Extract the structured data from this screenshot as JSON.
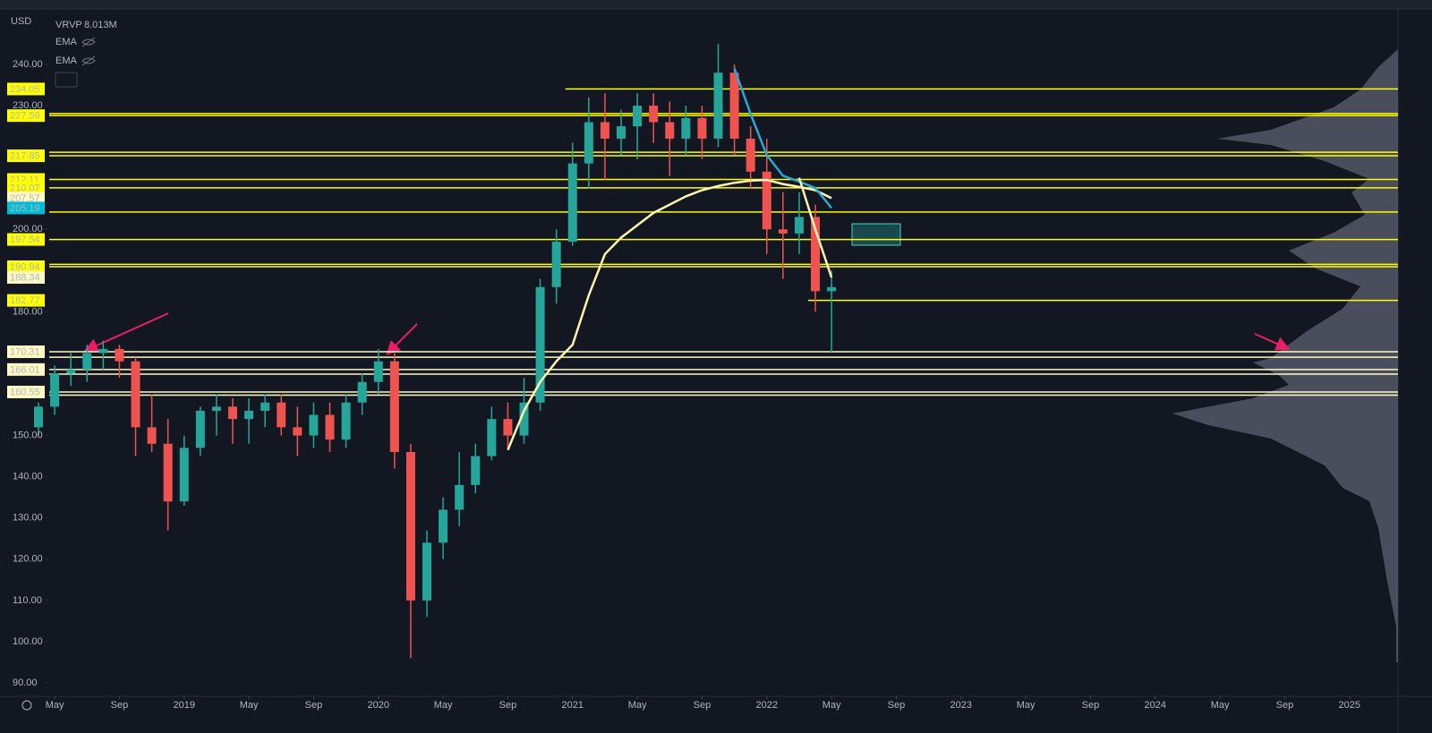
{
  "chart_data": {
    "type": "candlestick",
    "currency": "USD",
    "indicator_label": "VRVP",
    "indicator_value": "8.013M",
    "xlim": [
      "2018-04",
      "2025-04"
    ],
    "ylim": [
      88,
      247
    ],
    "yticks": [
      {
        "value": 90,
        "label": "90.00"
      },
      {
        "value": 100,
        "label": "100.00"
      },
      {
        "value": 110,
        "label": "110.00"
      },
      {
        "value": 120,
        "label": "120.00"
      },
      {
        "value": 130,
        "label": "130.00"
      },
      {
        "value": 140,
        "label": "140.00"
      },
      {
        "value": 150,
        "label": "150.00"
      },
      {
        "value": 180,
        "label": "180.00"
      },
      {
        "value": 200,
        "label": "200.00"
      },
      {
        "value": 230,
        "label": "230.00"
      },
      {
        "value": 240,
        "label": "240.00"
      }
    ],
    "xticks": [
      {
        "value": "2018-05",
        "label": "May"
      },
      {
        "value": "2018-09",
        "label": "Sep"
      },
      {
        "value": "2019-01",
        "label": "2019"
      },
      {
        "value": "2019-05",
        "label": "May"
      },
      {
        "value": "2019-09",
        "label": "Sep"
      },
      {
        "value": "2020-01",
        "label": "2020"
      },
      {
        "value": "2020-05",
        "label": "May"
      },
      {
        "value": "2020-09",
        "label": "Sep"
      },
      {
        "value": "2021-01",
        "label": "2021"
      },
      {
        "value": "2021-05",
        "label": "May"
      },
      {
        "value": "2021-09",
        "label": "Sep"
      },
      {
        "value": "2022-01",
        "label": "2022"
      },
      {
        "value": "2022-05",
        "label": "May"
      },
      {
        "value": "2022-09",
        "label": "Sep"
      },
      {
        "value": "2023-01",
        "label": "2023"
      },
      {
        "value": "2023-05",
        "label": "May"
      },
      {
        "value": "2023-09",
        "label": "Sep"
      },
      {
        "value": "2024-01",
        "label": "2024"
      },
      {
        "value": "2024-05",
        "label": "May"
      },
      {
        "value": "2024-09",
        "label": "Sep"
      },
      {
        "value": "2025-01",
        "label": "2025"
      }
    ],
    "up_color": "#26a69a",
    "down_color": "#ef5350",
    "x": [
      "2018-04",
      "2018-05",
      "2018-06",
      "2018-07",
      "2018-08",
      "2018-09",
      "2018-10",
      "2018-11",
      "2018-12",
      "2019-01",
      "2019-02",
      "2019-03",
      "2019-04",
      "2019-05",
      "2019-06",
      "2019-07",
      "2019-08",
      "2019-09",
      "2019-10",
      "2019-11",
      "2019-12",
      "2020-01",
      "2020-02",
      "2020-03",
      "2020-04",
      "2020-05",
      "2020-06",
      "2020-07",
      "2020-08",
      "2020-09",
      "2020-10",
      "2020-11",
      "2020-12",
      "2021-01",
      "2021-02",
      "2021-03",
      "2021-04",
      "2021-05",
      "2021-06",
      "2021-07",
      "2021-08",
      "2021-09",
      "2021-10",
      "2021-11",
      "2021-12",
      "2022-01",
      "2022-02",
      "2022-03",
      "2022-04",
      "2022-05"
    ],
    "open": [
      152,
      157,
      165,
      166,
      170,
      171,
      168,
      152,
      148,
      134,
      147,
      156,
      157,
      154,
      156,
      158,
      152,
      150,
      155,
      149,
      158,
      163,
      168,
      146,
      110,
      124,
      132,
      138,
      145,
      154,
      150,
      158,
      186,
      197,
      216,
      226,
      222,
      225,
      230,
      226,
      222,
      227,
      222,
      238,
      222,
      214,
      200,
      199,
      203,
      185
    ],
    "high": [
      158,
      167,
      170,
      172,
      173,
      172,
      169,
      160,
      154,
      150,
      157,
      160,
      159,
      159,
      160,
      160,
      157,
      158,
      158,
      160,
      165,
      171,
      170,
      148,
      127,
      135,
      146,
      148,
      157,
      158,
      164,
      188,
      200,
      221,
      232,
      233,
      229,
      233,
      233,
      231,
      230,
      230,
      245,
      240,
      225,
      222,
      209,
      209,
      206,
      190
    ],
    "low": [
      150,
      155,
      162,
      163,
      166,
      164,
      145,
      146,
      127,
      133,
      145,
      150,
      148,
      148,
      152,
      150,
      145,
      147,
      146,
      147,
      155,
      160,
      142,
      96,
      106,
      120,
      128,
      136,
      144,
      147,
      148,
      156,
      182,
      196,
      210,
      212,
      218,
      217,
      221,
      213,
      218,
      217,
      220,
      218,
      210,
      194,
      188,
      194,
      180,
      170
    ],
    "close": [
      157,
      165,
      166,
      170,
      171,
      168,
      152,
      148,
      134,
      147,
      156,
      157,
      154,
      156,
      158,
      152,
      150,
      155,
      149,
      158,
      163,
      168,
      146,
      110,
      124,
      132,
      138,
      145,
      154,
      150,
      158,
      186,
      197,
      216,
      226,
      222,
      225,
      230,
      226,
      222,
      227,
      222,
      238,
      222,
      214,
      200,
      199,
      203,
      185,
      186
    ],
    "series": [
      {
        "name": "EMA",
        "color": "#fff3b0",
        "x": [
          "2020-09",
          "2020-10",
          "2020-11",
          "2020-12",
          "2021-01",
          "2021-02",
          "2021-03",
          "2021-04",
          "2021-05",
          "2021-06",
          "2021-07",
          "2021-08",
          "2021-09",
          "2021-10",
          "2021-11",
          "2021-12",
          "2022-01",
          "2022-02",
          "2022-03",
          "2022-04",
          "2022-05"
        ],
        "values": [
          146.5,
          156,
          163,
          168,
          172,
          184,
          194,
          198,
          201,
          204,
          206,
          208,
          209.5,
          210.5,
          211.3,
          211.8,
          212,
          211,
          210.3,
          209.5,
          207.57
        ],
        "last_label": {
          "value": 207.57,
          "label": "207.57"
        }
      },
      {
        "name": "EMA",
        "color": "#26a9d6",
        "x": [
          "2021-11",
          "2021-12",
          "2022-01",
          "2022-02",
          "2022-03",
          "2022-04",
          "2022-05"
        ],
        "values": [
          239,
          228,
          218,
          213,
          211.6,
          210,
          205.19
        ],
        "last_label": {
          "value": 205.19,
          "label": "205.19"
        }
      },
      {
        "color": "#fff3b0",
        "x": [
          "2022-03",
          "2022-04",
          "2022-05"
        ],
        "values": [
          212.5,
          200,
          188.34
        ],
        "last_label": {
          "value": 188.34,
          "label": "188.34"
        }
      }
    ],
    "levels": [
      {
        "value": 234.05,
        "label": "234.05",
        "color": "#ffff00",
        "from": "2021-01"
      },
      {
        "value": 228.1,
        "color": "#ffff00"
      },
      {
        "value": 227.59,
        "label": "227.59",
        "color": "#ffff00"
      },
      {
        "value": 218.7,
        "color": "#ffff00"
      },
      {
        "value": 217.85,
        "label": "217.85",
        "color": "#ffff00"
      },
      {
        "value": 212.11,
        "label": "212.11",
        "color": "#ffff00"
      },
      {
        "value": 210.07,
        "label": "210.07",
        "color": "#ffff00"
      },
      {
        "value": 204.2,
        "color": "#ffff00"
      },
      {
        "value": 197.54,
        "label": "197.54",
        "color": "#ffff00"
      },
      {
        "value": 191.5,
        "color": "#ffff00"
      },
      {
        "value": 190.94,
        "label": "190.94",
        "color": "#ffff00"
      },
      {
        "value": 182.77,
        "label": "182.77",
        "color": "#ffff00",
        "from": "2022-04"
      },
      {
        "value": 170.31,
        "label": "170.31",
        "color": "#fff9c4"
      },
      {
        "value": 169.0,
        "color": "#fff9c4"
      },
      {
        "value": 166.01,
        "label": "166.01",
        "color": "#fff9c4"
      },
      {
        "value": 164.9,
        "color": "#fff9c4"
      },
      {
        "value": 160.55,
        "label": "160.55",
        "color": "#fff9c4"
      },
      {
        "value": 159.8,
        "color": "#fff9c4"
      }
    ]
  }
}
